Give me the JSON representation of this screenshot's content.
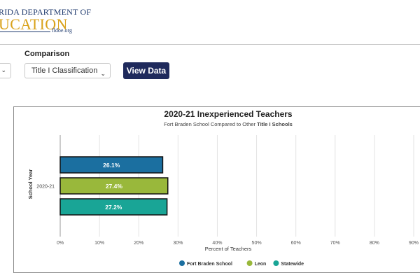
{
  "header": {
    "logo_line1": "RIDA DEPARTMENT OF",
    "logo_line2": "UCATION",
    "logo_site": "fldoe.org"
  },
  "controls": {
    "comparison_label": "Comparison",
    "comparison_value": "Title I Classification",
    "view_button_label": "View Data"
  },
  "chart_data": {
    "type": "bar",
    "orientation": "horizontal",
    "title": "2020-21 Inexperienced Teachers",
    "subtitle_prefix": "Fort Braden School Compared to Other ",
    "subtitle_bold": "Title I Schools",
    "categories": [
      "2020-21"
    ],
    "xlabel": "Percent of Teachers",
    "ylabel": "School Year",
    "xlim": [
      0,
      90
    ],
    "xticks": [
      "0%",
      "10%",
      "20%",
      "30%",
      "40%",
      "50%",
      "60%",
      "70%",
      "80%",
      "90%"
    ],
    "grid": true,
    "legend_position": "bottom",
    "series": [
      {
        "name": "Fort Braden School",
        "values": [
          26.1
        ],
        "label": "26.1%",
        "color": "#1b6fa0"
      },
      {
        "name": "Leon",
        "values": [
          27.4
        ],
        "label": "27.4%",
        "color": "#99b83b"
      },
      {
        "name": "Statewide",
        "values": [
          27.2
        ],
        "label": "27.2%",
        "color": "#19a596"
      }
    ]
  }
}
